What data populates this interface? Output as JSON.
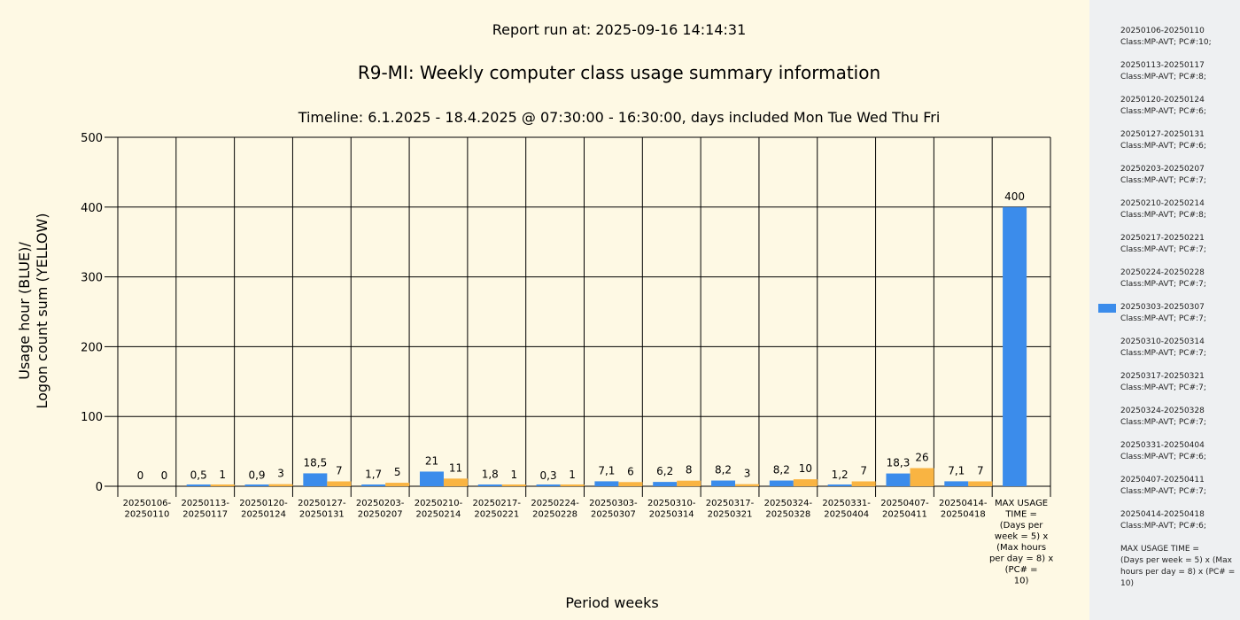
{
  "chart_data": {
    "type": "bar",
    "report_run": "Report run at: 2025-09-16 14:14:31",
    "title": "R9-MI: Weekly computer class usage summary information",
    "subtitle": "Timeline:  6.1.2025  - 18.4.2025  @  07:30:00 -  16:30:00, days included Mon Tue Wed Thu Fri",
    "xlabel": "Period weeks",
    "ylabel_line1": "Usage hour (BLUE)/",
    "ylabel_line2": "Logon count sum (YELLOW)",
    "ylim": [
      0,
      500
    ],
    "yticks": [
      "0",
      "100",
      "200",
      "300",
      "400",
      "500"
    ],
    "ytick_values": [
      0,
      100,
      200,
      300,
      400,
      500
    ],
    "categories": [
      [
        "20250106-",
        "20250110"
      ],
      [
        "20250113-",
        "20250117"
      ],
      [
        "20250120-",
        "20250124"
      ],
      [
        "20250127-",
        "20250131"
      ],
      [
        "20250203-",
        "20250207"
      ],
      [
        "20250210-",
        "20250214"
      ],
      [
        "20250217-",
        "20250221"
      ],
      [
        "20250224-",
        "20250228"
      ],
      [
        "20250303-",
        "20250307"
      ],
      [
        "20250310-",
        "20250314"
      ],
      [
        "20250317-",
        "20250321"
      ],
      [
        "20250324-",
        "20250328"
      ],
      [
        "20250331-",
        "20250404"
      ],
      [
        "20250407-",
        "20250411"
      ],
      [
        "20250414-",
        "20250418"
      ],
      [
        "MAX USAGE",
        "TIME =",
        "(Days per",
        "week = 5) x",
        "(Max hours",
        "per day = 8) x",
        "(PC# =",
        "10)"
      ]
    ],
    "series": [
      {
        "color": "#3b8ceb",
        "values": [
          0,
          0.5,
          0.9,
          18.5,
          1.7,
          21,
          1.8,
          0.3,
          7.1,
          6.2,
          8.2,
          8.2,
          1.2,
          18.3,
          7.1,
          400
        ],
        "labels": [
          "0",
          "0,5",
          "0,9",
          "18,5",
          "1,7",
          "21",
          "1,8",
          "0,3",
          "7,1",
          "6,2",
          "8,2",
          "8,2",
          "1,2",
          "18,3",
          "7,1",
          "400"
        ]
      },
      {
        "color": "#f9b442",
        "values": [
          0,
          1,
          3,
          7,
          5,
          11,
          1,
          1,
          6,
          8,
          3,
          10,
          7,
          26,
          7,
          null
        ],
        "labels": [
          "0",
          "1",
          "3",
          "7",
          "5",
          "11",
          "1",
          "1",
          "6",
          "8",
          "3",
          "10",
          "7",
          "26",
          "7",
          ""
        ]
      }
    ],
    "grid": true
  },
  "legend": {
    "swatch_color": "#3b8ceb",
    "swatch_item_index": 8,
    "items": [
      {
        "line1": "20250106-20250110",
        "line2": "Class:MP-AVT; PC#:10;"
      },
      {
        "line1": "20250113-20250117",
        "line2": "Class:MP-AVT; PC#:8;"
      },
      {
        "line1": "20250120-20250124",
        "line2": "Class:MP-AVT; PC#:6;"
      },
      {
        "line1": "20250127-20250131",
        "line2": "Class:MP-AVT; PC#:6;"
      },
      {
        "line1": "20250203-20250207",
        "line2": "Class:MP-AVT; PC#:7;"
      },
      {
        "line1": "20250210-20250214",
        "line2": "Class:MP-AVT; PC#:8;"
      },
      {
        "line1": "20250217-20250221",
        "line2": "Class:MP-AVT; PC#:7;"
      },
      {
        "line1": "20250224-20250228",
        "line2": "Class:MP-AVT; PC#:7;"
      },
      {
        "line1": "20250303-20250307",
        "line2": "Class:MP-AVT; PC#:7;"
      },
      {
        "line1": "20250310-20250314",
        "line2": "Class:MP-AVT; PC#:7;"
      },
      {
        "line1": "20250317-20250321",
        "line2": "Class:MP-AVT; PC#:7;"
      },
      {
        "line1": "20250324-20250328",
        "line2": "Class:MP-AVT; PC#:7;"
      },
      {
        "line1": "20250331-20250404",
        "line2": "Class:MP-AVT; PC#:6;"
      },
      {
        "line1": "20250407-20250411",
        "line2": "Class:MP-AVT; PC#:7;"
      },
      {
        "line1": "20250414-20250418",
        "line2": "Class:MP-AVT; PC#:6;"
      },
      {
        "line1": "MAX USAGE TIME =",
        "line2": " (Days per week = 5) x (Max hours per day = 8) x (PC# = 10)"
      }
    ]
  }
}
